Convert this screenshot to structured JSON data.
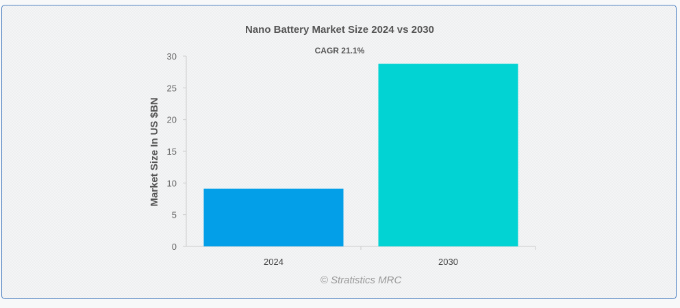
{
  "chart_data": {
    "type": "bar",
    "title": "Nano Battery Market Size 2024 vs 2030",
    "subtitle": "CAGR 21.1%",
    "xlabel": "",
    "ylabel": "Market Size In US $BN",
    "categories": [
      "2024",
      "2030"
    ],
    "values": [
      9.1,
      28.8
    ],
    "colors": [
      "#039fe8",
      "#02d3d3"
    ],
    "ylim": [
      0,
      30
    ],
    "yticks": [
      "0",
      "5",
      "10",
      "15",
      "20",
      "25",
      "30"
    ],
    "grid": false,
    "legend": "none"
  },
  "credit": "© Stratistics MRC"
}
